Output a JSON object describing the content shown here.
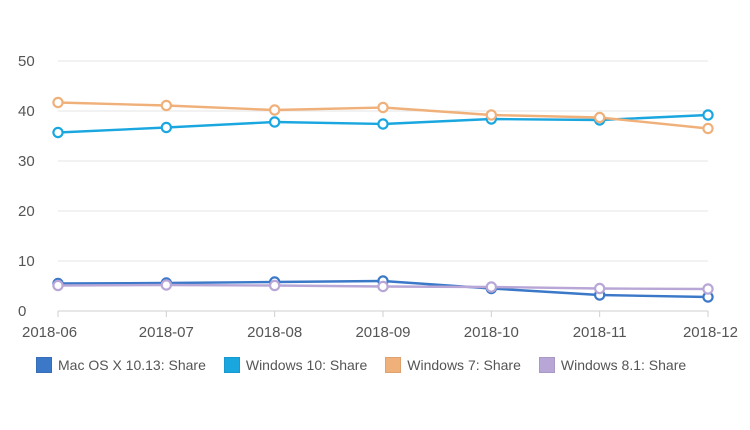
{
  "chart_data": {
    "type": "line",
    "title": "",
    "xlabel": "",
    "ylabel": "",
    "x": [
      "2018-06",
      "2018-07",
      "2018-08",
      "2018-09",
      "2018-10",
      "2018-11",
      "2018-12"
    ],
    "ylim": [
      0,
      50
    ],
    "yticks": [
      "0",
      "10",
      "20",
      "30",
      "40",
      "50"
    ],
    "grid": true,
    "legend_position": "bottom",
    "series": [
      {
        "name": "Mac OS X 10.13: Share",
        "color": "#3b78c8",
        "values": [
          5.5,
          5.6,
          5.8,
          6.0,
          4.5,
          3.2,
          2.8
        ]
      },
      {
        "name": "Windows 10: Share",
        "color": "#1aa7e0",
        "values": [
          35.7,
          36.7,
          37.8,
          37.4,
          38.4,
          38.2,
          39.2
        ]
      },
      {
        "name": "Windows 7: Share",
        "color": "#f0b07a",
        "values": [
          41.7,
          41.1,
          40.2,
          40.7,
          39.2,
          38.7,
          36.5
        ]
      },
      {
        "name": "Windows 8.1: Share",
        "color": "#b8a7d6",
        "values": [
          5.1,
          5.2,
          5.1,
          4.9,
          4.8,
          4.5,
          4.4
        ]
      }
    ]
  }
}
